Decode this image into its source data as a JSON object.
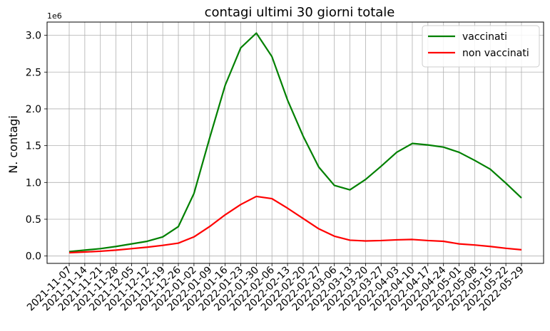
{
  "chart_data": {
    "type": "line",
    "title": "contagi ultimi 30 giorni totale",
    "xlabel": "",
    "ylabel": "N. contagi",
    "y_offset_text": "1e6",
    "ylim": [
      -0.1,
      3.18
    ],
    "yticks": [
      0.0,
      0.5,
      1.0,
      1.5,
      2.0,
      2.5,
      3.0
    ],
    "ytick_labels": [
      "0.0",
      "0.5",
      "1.0",
      "1.5",
      "2.0",
      "2.5",
      "3.0"
    ],
    "grid": true,
    "legend_position": "top-right",
    "categories": [
      "2021-11-07",
      "2021-11-14",
      "2021-11-21",
      "2021-11-28",
      "2021-12-05",
      "2021-12-12",
      "2021-12-19",
      "2021-12-26",
      "2022-01-02",
      "2022-01-09",
      "2022-01-16",
      "2022-01-23",
      "2022-01-30",
      "2022-02-06",
      "2022-02-13",
      "2022-02-20",
      "2022-02-27",
      "2022-03-06",
      "2022-03-13",
      "2022-03-20",
      "2022-03-27",
      "2022-04-03",
      "2022-04-10",
      "2022-04-17",
      "2022-04-24",
      "2022-05-01",
      "2022-05-08",
      "2022-05-15",
      "2022-05-22",
      "2022-05-29"
    ],
    "series": [
      {
        "name": "vaccinati",
        "color": "#008000",
        "values": [
          0.06,
          0.08,
          0.1,
          0.13,
          0.165,
          0.2,
          0.26,
          0.4,
          0.85,
          1.6,
          2.32,
          2.83,
          3.03,
          2.71,
          2.12,
          1.63,
          1.21,
          0.96,
          0.9,
          1.04,
          1.22,
          1.41,
          1.53,
          1.51,
          1.48,
          1.41,
          1.3,
          1.18,
          0.99,
          0.79
        ]
      },
      {
        "name": "non vaccinati",
        "color": "#ff0000",
        "values": [
          0.045,
          0.055,
          0.065,
          0.08,
          0.1,
          0.12,
          0.145,
          0.175,
          0.26,
          0.4,
          0.56,
          0.7,
          0.81,
          0.78,
          0.65,
          0.51,
          0.37,
          0.27,
          0.215,
          0.205,
          0.21,
          0.22,
          0.225,
          0.21,
          0.2,
          0.165,
          0.15,
          0.13,
          0.105,
          0.085
        ]
      }
    ]
  }
}
